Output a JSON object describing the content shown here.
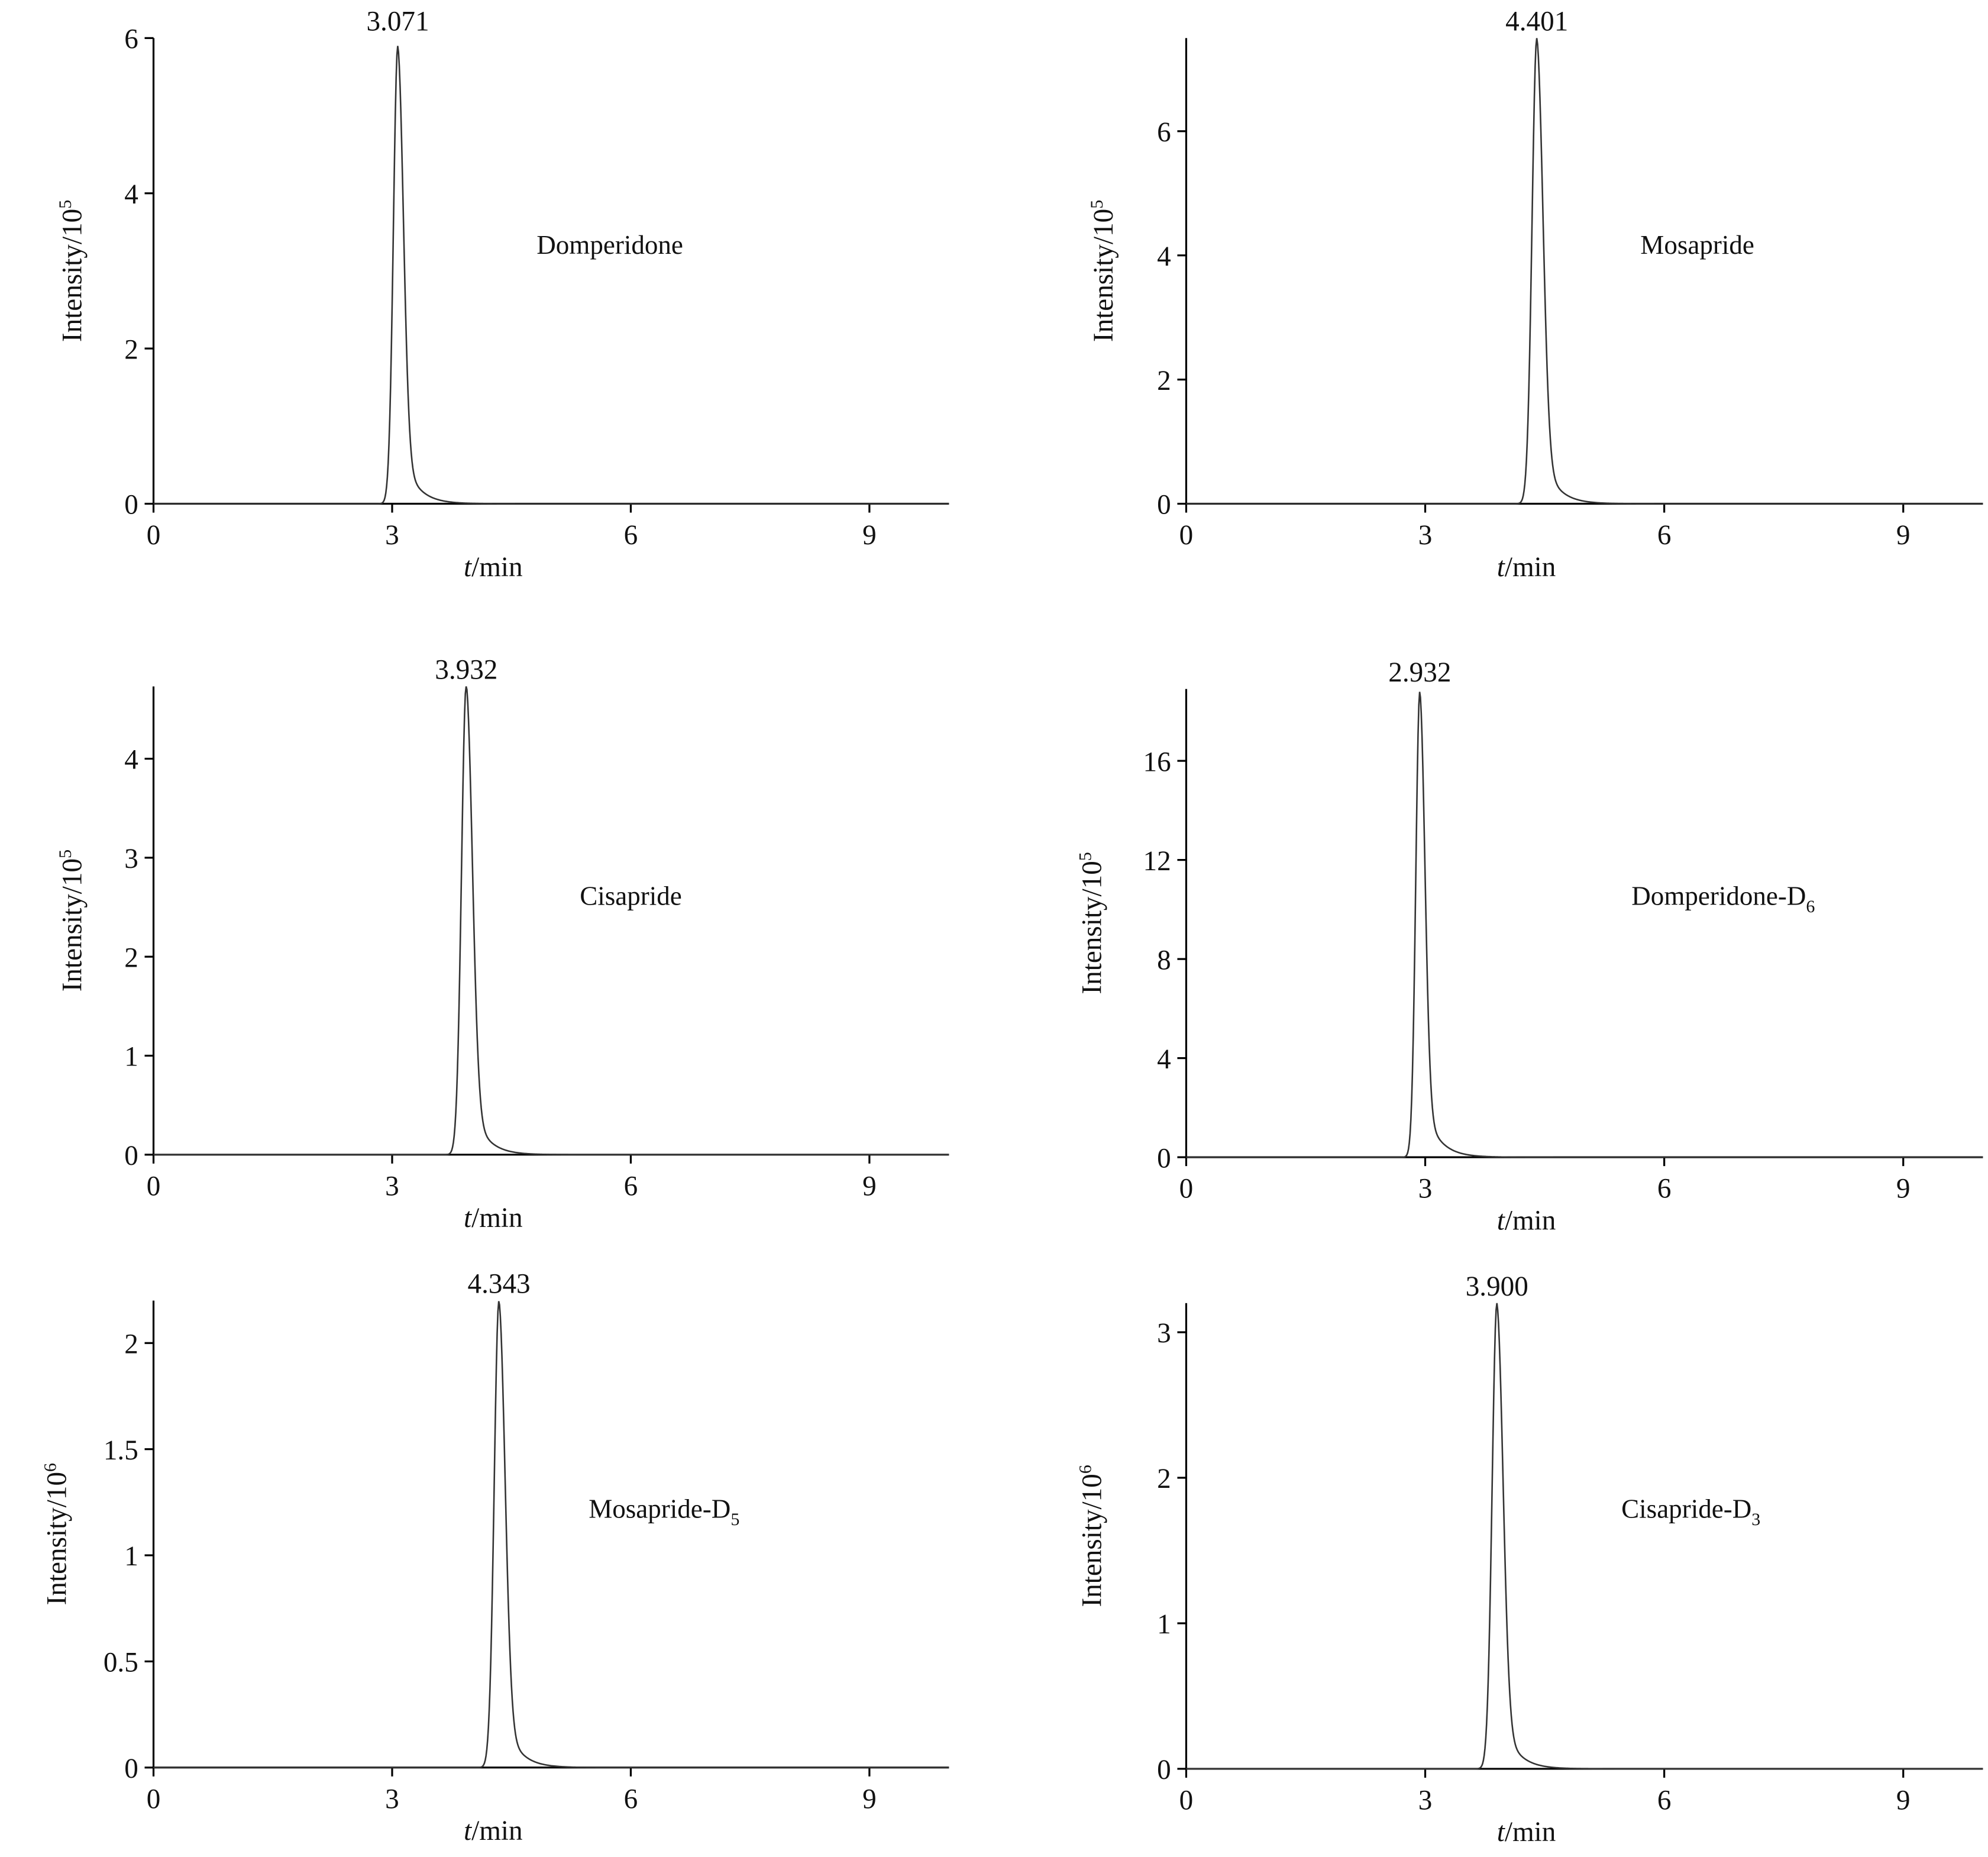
{
  "chart_data": [
    {
      "type": "line",
      "compound": "Domperidone",
      "subscript": "",
      "peak_label": "3.071",
      "retention_time": 3.071,
      "peak_height": 5.9,
      "xlabel_italic": "t",
      "xlabel_rest": "/min",
      "ylabel": "Intensity/10",
      "ylabel_exp": "5",
      "xlim": [
        0,
        10
      ],
      "ylim": [
        0,
        6
      ],
      "xticks": [
        "0",
        "3",
        "6",
        "9"
      ],
      "yticks": [
        "0",
        "2",
        "4",
        "6"
      ]
    },
    {
      "type": "line",
      "compound": "Mosapride",
      "subscript": "",
      "peak_label": "4.401",
      "retention_time": 4.401,
      "peak_height": 7.5,
      "xlabel_italic": "t",
      "xlabel_rest": "/min",
      "ylabel": "Intensity/10",
      "ylabel_exp": "5",
      "xlim": [
        0,
        10
      ],
      "ylim": [
        0,
        7.5
      ],
      "xticks": [
        "0",
        "3",
        "6",
        "9"
      ],
      "yticks": [
        "0",
        "2",
        "4",
        "6"
      ]
    },
    {
      "type": "line",
      "compound": "Cisapride",
      "subscript": "",
      "peak_label": "3.932",
      "retention_time": 3.932,
      "peak_height": 4.75,
      "xlabel_italic": "t",
      "xlabel_rest": "/min",
      "ylabel": "Intensity/10",
      "ylabel_exp": "5",
      "xlim": [
        0,
        10
      ],
      "ylim": [
        0,
        4.73
      ],
      "xticks": [
        "0",
        "3",
        "6",
        "9"
      ],
      "yticks": [
        "0",
        "1",
        "2",
        "3",
        "4"
      ]
    },
    {
      "type": "line",
      "compound": "Domperidone-D",
      "subscript": "6",
      "peak_label": "2.932",
      "retention_time": 2.932,
      "peak_height": 18.8,
      "xlabel_italic": "t",
      "xlabel_rest": "/min",
      "ylabel": "Intensity/10",
      "ylabel_exp": "5",
      "xlim": [
        0,
        10
      ],
      "ylim": [
        0,
        18.9
      ],
      "xticks": [
        "0",
        "3",
        "6",
        "9"
      ],
      "yticks": [
        "0",
        "4",
        "8",
        "12",
        "16"
      ]
    },
    {
      "type": "line",
      "compound": "Mosapride-D",
      "subscript": "5",
      "peak_label": "4.343",
      "retention_time": 4.343,
      "peak_height": 2.2,
      "xlabel_italic": "t",
      "xlabel_rest": "/min",
      "ylabel": "Intensity/10",
      "ylabel_exp": "6",
      "xlim": [
        0,
        10
      ],
      "ylim": [
        0,
        2.2
      ],
      "xticks": [
        "0",
        "3",
        "6",
        "9"
      ],
      "yticks": [
        "0",
        "0.5",
        "1",
        "1.5",
        "2"
      ]
    },
    {
      "type": "line",
      "compound": "Cisapride-D",
      "subscript": "3",
      "peak_label": "3.900",
      "retention_time": 3.9,
      "peak_height": 3.2,
      "xlabel_italic": "t",
      "xlabel_rest": "/min",
      "ylabel": "Intensity/10",
      "ylabel_exp": "6",
      "xlim": [
        0,
        10
      ],
      "ylim": [
        0,
        3.2
      ],
      "xticks": [
        "0",
        "3",
        "6",
        "9"
      ],
      "yticks": [
        "0",
        "1",
        "2",
        "3"
      ]
    }
  ]
}
